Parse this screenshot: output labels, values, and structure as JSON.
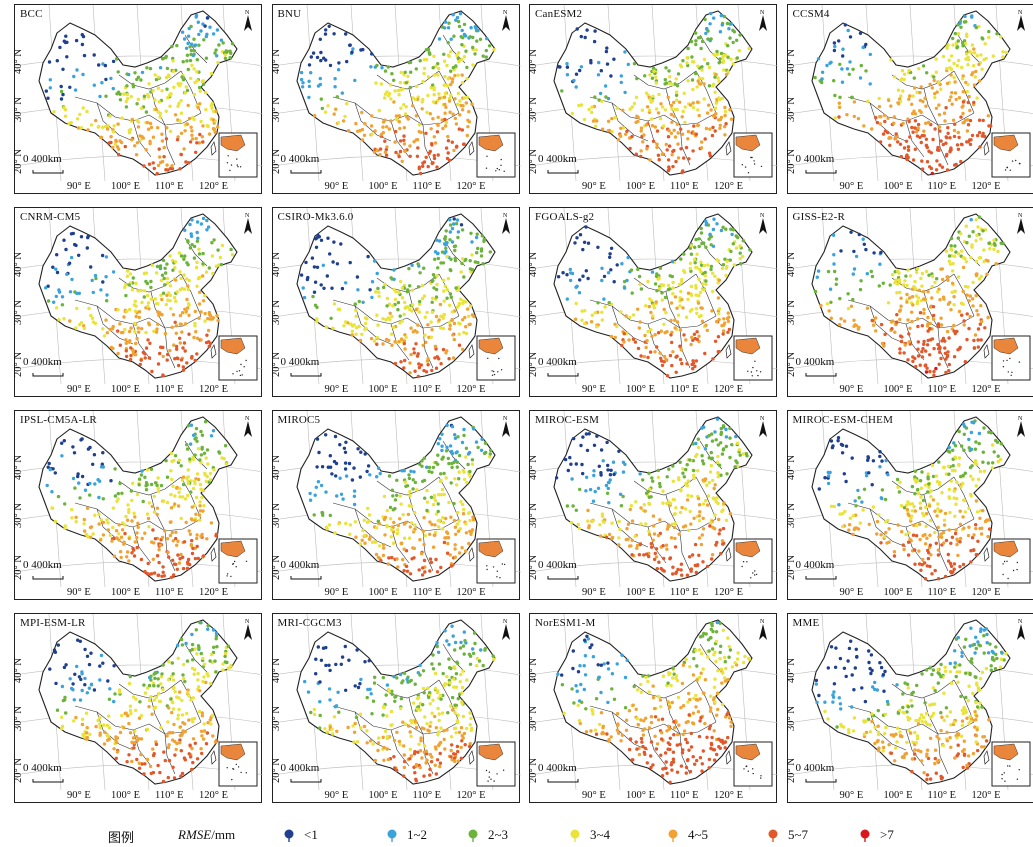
{
  "panels": [
    {
      "name": "BCC",
      "style": "low"
    },
    {
      "name": "BNU",
      "style": "mid"
    },
    {
      "name": "CanESM2",
      "style": "mid"
    },
    {
      "name": "CCSM4",
      "style": "high"
    },
    {
      "name": "CNRM-CM5",
      "style": "mid"
    },
    {
      "name": "CSIRO-Mk3.6.0",
      "style": "low"
    },
    {
      "name": "FGOALS-g2",
      "style": "mid"
    },
    {
      "name": "GISS-E2-R",
      "style": "high"
    },
    {
      "name": "IPSL-CM5A-LR",
      "style": "mid"
    },
    {
      "name": "MIROC5",
      "style": "low"
    },
    {
      "name": "MIROC-ESM",
      "style": "mid"
    },
    {
      "name": "MIROC-ESM-CHEM",
      "style": "mid"
    },
    {
      "name": "MPI-ESM-LR",
      "style": "mid"
    },
    {
      "name": "MRI-CGCM3",
      "style": "low"
    },
    {
      "name": "NorESM1-M",
      "style": "high"
    },
    {
      "name": "MME",
      "style": "low"
    }
  ],
  "map": {
    "scale_label": "0 400km",
    "lon_labels": [
      "90° E",
      "100° E",
      "110° E",
      "120° E"
    ],
    "lat_labels": [
      "40° N",
      "30° N",
      "20° N"
    ],
    "north_arrow": "N"
  },
  "legend": {
    "title": "图例",
    "variable_name": "RMSE",
    "variable_unit": "/mm",
    "classes": [
      {
        "label": "<1",
        "color": "#1f3f8f"
      },
      {
        "label": "1~2",
        "color": "#3aa3dc"
      },
      {
        "label": "2~3",
        "color": "#6bb33a"
      },
      {
        "label": "3~4",
        "color": "#e9e33a"
      },
      {
        "label": "4~5",
        "color": "#f0a332"
      },
      {
        "label": "5~7",
        "color": "#e2582a"
      },
      {
        "label": ">7",
        "color": "#d8161b"
      }
    ]
  }
}
